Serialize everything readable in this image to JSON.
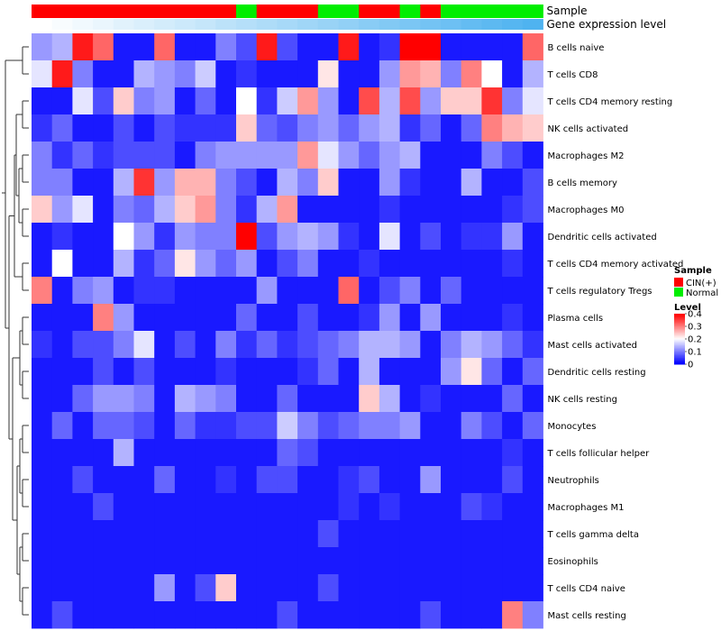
{
  "chart_data": {
    "type": "heatmap",
    "annotation_rows": [
      "Sample",
      "Gene expression level"
    ],
    "sample_groups": [
      "CIN",
      "CIN",
      "CIN",
      "CIN",
      "CIN",
      "CIN",
      "CIN",
      "CIN",
      "CIN",
      "CIN",
      "Normal",
      "CIN",
      "CIN",
      "CIN",
      "Normal",
      "Normal",
      "CIN",
      "CIN",
      "Normal",
      "CIN",
      "Normal",
      "Normal",
      "Normal",
      "Normal",
      "Normal"
    ],
    "gene_expression": [
      0,
      0.04,
      0.08,
      0.12,
      0.17,
      0.21,
      0.25,
      0.29,
      0.33,
      0.38,
      0.42,
      0.46,
      0.5,
      0.54,
      0.58,
      0.62,
      0.67,
      0.71,
      0.75,
      0.79,
      0.83,
      0.88,
      0.92,
      0.96,
      1.0
    ],
    "rows": [
      "B cells naive",
      "T cells CD8",
      "T cells CD4 memory resting",
      "NK cells activated",
      "Macrophages M2",
      "B cells memory",
      "Macrophages M0",
      "Dendritic cells activated",
      "T cells CD4 memory activated",
      "T cells regulatory  Tregs",
      "Plasma cells",
      "Mast cells activated",
      "Dendritic cells resting",
      "NK cells resting",
      "Monocytes",
      "T cells follicular helper",
      "Neutrophils",
      "Macrophages M1",
      "T cells gamma delta",
      "Eosinophils",
      "T cells CD4 naive",
      "Mast cells resting"
    ],
    "values": [
      [
        0.12,
        0.14,
        0.38,
        0.32,
        0.02,
        0.02,
        0.32,
        0.02,
        0.02,
        0.1,
        0.06,
        0.38,
        0.06,
        0.02,
        0.02,
        0.38,
        0.02,
        0.04,
        0.4,
        0.4,
        0.02,
        0.02,
        0.02,
        0.02,
        0.32
      ],
      [
        0.18,
        0.38,
        0.1,
        0.02,
        0.02,
        0.14,
        0.12,
        0.1,
        0.16,
        0.02,
        0.04,
        0.02,
        0.02,
        0.02,
        0.22,
        0.02,
        0.02,
        0.12,
        0.28,
        0.26,
        0.1,
        0.3,
        0.2,
        0.02,
        0.14
      ],
      [
        0.02,
        0.02,
        0.18,
        0.06,
        0.24,
        0.1,
        0.12,
        0.02,
        0.08,
        0.02,
        0.2,
        0.04,
        0.16,
        0.28,
        0.12,
        0.02,
        0.34,
        0.14,
        0.34,
        0.12,
        0.24,
        0.24,
        0.36,
        0.1,
        0.18
      ],
      [
        0.04,
        0.08,
        0.02,
        0.02,
        0.06,
        0.02,
        0.06,
        0.04,
        0.04,
        0.04,
        0.24,
        0.08,
        0.06,
        0.1,
        0.12,
        0.08,
        0.12,
        0.14,
        0.04,
        0.08,
        0.02,
        0.08,
        0.3,
        0.26,
        0.24
      ],
      [
        0.1,
        0.04,
        0.08,
        0.04,
        0.06,
        0.06,
        0.06,
        0.02,
        0.1,
        0.12,
        0.12,
        0.12,
        0.12,
        0.28,
        0.18,
        0.12,
        0.08,
        0.12,
        0.14,
        0.02,
        0.02,
        0.02,
        0.1,
        0.06,
        0.02
      ],
      [
        0.1,
        0.1,
        0.02,
        0.02,
        0.14,
        0.36,
        0.12,
        0.26,
        0.26,
        0.1,
        0.06,
        0.02,
        0.14,
        0.1,
        0.24,
        0.02,
        0.02,
        0.12,
        0.04,
        0.02,
        0.02,
        0.14,
        0.02,
        0.02,
        0.06
      ],
      [
        0.24,
        0.12,
        0.18,
        0.02,
        0.1,
        0.08,
        0.14,
        0.24,
        0.28,
        0.1,
        0.04,
        0.14,
        0.28,
        0.02,
        0.02,
        0.02,
        0.02,
        0.04,
        0.02,
        0.02,
        0.02,
        0.02,
        0.02,
        0.04,
        0.06
      ],
      [
        0.02,
        0.04,
        0.02,
        0.02,
        0.2,
        0.12,
        0.04,
        0.12,
        0.1,
        0.1,
        0.4,
        0.06,
        0.12,
        0.14,
        0.12,
        0.04,
        0.02,
        0.18,
        0.02,
        0.06,
        0.02,
        0.04,
        0.04,
        0.12,
        0.02
      ],
      [
        0.02,
        0.2,
        0.02,
        0.02,
        0.14,
        0.04,
        0.08,
        0.22,
        0.12,
        0.08,
        0.12,
        0.02,
        0.06,
        0.1,
        0.02,
        0.02,
        0.04,
        0.02,
        0.02,
        0.02,
        0.02,
        0.02,
        0.02,
        0.04,
        0.02
      ],
      [
        0.3,
        0.02,
        0.1,
        0.12,
        0.02,
        0.04,
        0.04,
        0.02,
        0.02,
        0.02,
        0.02,
        0.12,
        0.02,
        0.02,
        0.02,
        0.32,
        0.02,
        0.06,
        0.1,
        0.02,
        0.08,
        0.02,
        0.02,
        0.02,
        0.02
      ],
      [
        0.02,
        0.02,
        0.02,
        0.3,
        0.12,
        0.02,
        0.02,
        0.02,
        0.02,
        0.02,
        0.08,
        0.02,
        0.02,
        0.06,
        0.02,
        0.02,
        0.04,
        0.12,
        0.02,
        0.12,
        0.02,
        0.02,
        0.02,
        0.04,
        0.02
      ],
      [
        0.04,
        0.02,
        0.06,
        0.06,
        0.1,
        0.18,
        0.02,
        0.06,
        0.02,
        0.1,
        0.04,
        0.08,
        0.04,
        0.06,
        0.08,
        0.1,
        0.14,
        0.14,
        0.12,
        0.02,
        0.1,
        0.14,
        0.12,
        0.08,
        0.04
      ],
      [
        0.02,
        0.02,
        0.02,
        0.06,
        0.02,
        0.06,
        0.02,
        0.02,
        0.02,
        0.04,
        0.02,
        0.02,
        0.02,
        0.04,
        0.08,
        0.02,
        0.14,
        0.02,
        0.02,
        0.02,
        0.12,
        0.22,
        0.08,
        0.02,
        0.08
      ],
      [
        0.02,
        0.02,
        0.08,
        0.12,
        0.12,
        0.1,
        0.02,
        0.14,
        0.12,
        0.1,
        0.02,
        0.02,
        0.08,
        0.02,
        0.02,
        0.02,
        0.24,
        0.14,
        0.02,
        0.04,
        0.02,
        0.02,
        0.02,
        0.08,
        0.02
      ],
      [
        0.02,
        0.08,
        0.02,
        0.08,
        0.08,
        0.06,
        0.02,
        0.08,
        0.04,
        0.04,
        0.06,
        0.06,
        0.16,
        0.1,
        0.06,
        0.08,
        0.1,
        0.1,
        0.12,
        0.02,
        0.02,
        0.1,
        0.06,
        0.02,
        0.08
      ],
      [
        0.02,
        0.02,
        0.02,
        0.02,
        0.14,
        0.02,
        0.02,
        0.02,
        0.02,
        0.02,
        0.02,
        0.02,
        0.08,
        0.06,
        0.02,
        0.02,
        0.02,
        0.02,
        0.02,
        0.02,
        0.02,
        0.02,
        0.02,
        0.04,
        0.02
      ],
      [
        0.02,
        0.02,
        0.06,
        0.02,
        0.02,
        0.02,
        0.08,
        0.02,
        0.02,
        0.04,
        0.02,
        0.06,
        0.06,
        0.02,
        0.02,
        0.04,
        0.06,
        0.02,
        0.02,
        0.12,
        0.02,
        0.02,
        0.02,
        0.06,
        0.02
      ],
      [
        0.02,
        0.02,
        0.02,
        0.06,
        0.02,
        0.02,
        0.02,
        0.02,
        0.02,
        0.02,
        0.02,
        0.02,
        0.02,
        0.02,
        0.02,
        0.04,
        0.02,
        0.04,
        0.02,
        0.02,
        0.02,
        0.06,
        0.04,
        0.02,
        0.02
      ],
      [
        0.02,
        0.02,
        0.02,
        0.02,
        0.02,
        0.02,
        0.02,
        0.02,
        0.02,
        0.02,
        0.02,
        0.02,
        0.02,
        0.02,
        0.06,
        0.02,
        0.02,
        0.02,
        0.02,
        0.02,
        0.02,
        0.02,
        0.02,
        0.02,
        0.02
      ],
      [
        0.02,
        0.02,
        0.02,
        0.02,
        0.02,
        0.02,
        0.02,
        0.02,
        0.02,
        0.02,
        0.02,
        0.02,
        0.02,
        0.02,
        0.02,
        0.02,
        0.02,
        0.02,
        0.02,
        0.02,
        0.02,
        0.02,
        0.02,
        0.02,
        0.02
      ],
      [
        0.02,
        0.02,
        0.02,
        0.02,
        0.02,
        0.02,
        0.12,
        0.02,
        0.06,
        0.24,
        0.02,
        0.02,
        0.02,
        0.02,
        0.06,
        0.02,
        0.02,
        0.02,
        0.02,
        0.02,
        0.02,
        0.02,
        0.02,
        0.02,
        0.02
      ],
      [
        0.02,
        0.06,
        0.02,
        0.02,
        0.02,
        0.02,
        0.02,
        0.02,
        0.02,
        0.02,
        0.02,
        0.02,
        0.06,
        0.02,
        0.02,
        0.02,
        0.02,
        0.02,
        0.02,
        0.06,
        0.02,
        0.02,
        0.02,
        0.3,
        0.1
      ]
    ],
    "legend": {
      "sample_title": "Sample",
      "sample_items": [
        {
          "label": "CIN(+)",
          "color": "#ff0000"
        },
        {
          "label": "Normal",
          "color": "#00ee00"
        }
      ],
      "level_title": "Level",
      "level_ticks": [
        "0.4",
        "0.3",
        "0.2",
        "0.1",
        "0"
      ],
      "level_tick_values": [
        0.4,
        0.3,
        0.2,
        0.1,
        0
      ],
      "colors": {
        "low": "#0000ff",
        "mid": "#ffffff",
        "high": "#ff0000"
      },
      "vmin": 0,
      "vmid": 0.2,
      "vmax": 0.4
    }
  },
  "annotation_colors": {
    "CIN": "#ff0000",
    "Normal": "#00ee00"
  },
  "expression_colors": {
    "low": "#ffffff",
    "high": "#4fb3f0"
  }
}
